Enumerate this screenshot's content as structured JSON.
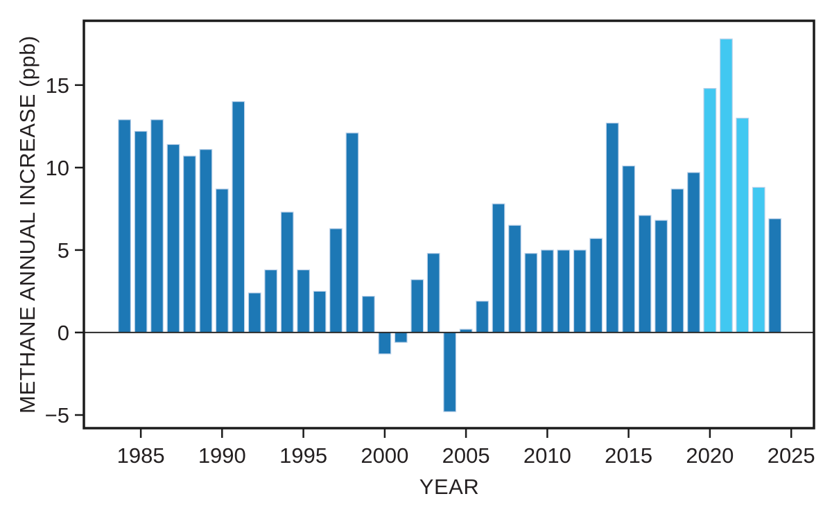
{
  "chart_data": {
    "type": "bar",
    "title": "",
    "xlabel": "YEAR",
    "ylabel": "METHANE ANNUAL INCREASE (ppb)",
    "categories": [
      1984,
      1985,
      1986,
      1987,
      1988,
      1989,
      1990,
      1991,
      1992,
      1993,
      1994,
      1995,
      1996,
      1997,
      1998,
      1999,
      2000,
      2001,
      2002,
      2003,
      2004,
      2005,
      2006,
      2007,
      2008,
      2009,
      2010,
      2011,
      2012,
      2013,
      2014,
      2015,
      2016,
      2017,
      2018,
      2019,
      2020,
      2021,
      2022,
      2023,
      2024
    ],
    "values": [
      12.9,
      12.2,
      12.9,
      11.4,
      10.7,
      11.1,
      8.7,
      14.0,
      2.4,
      3.8,
      7.3,
      3.8,
      2.5,
      6.3,
      12.1,
      2.2,
      -1.3,
      -0.6,
      3.2,
      4.8,
      -4.8,
      0.2,
      1.9,
      7.8,
      6.5,
      4.8,
      5.0,
      5.0,
      5.0,
      5.7,
      12.7,
      10.1,
      7.1,
      6.8,
      8.7,
      9.7,
      14.8,
      17.8,
      13.0,
      8.8,
      6.9
    ],
    "highlight_years": [
      2020,
      2021,
      2022,
      2023
    ],
    "bar_width_years": 0.75,
    "xticks": [
      1985,
      1990,
      1995,
      2000,
      2005,
      2010,
      2015,
      2020,
      2025
    ],
    "yticks": [
      15,
      10,
      5,
      0,
      -5
    ],
    "xlim": [
      1981.5,
      2026.4
    ],
    "ylim": [
      -5.8,
      18.9
    ],
    "grid": false,
    "legend": null,
    "zero_line": true,
    "colors": {
      "bar": "#1D78B5",
      "bar_highlight": "#41C8F1",
      "bar_edge": "#BDD2EA",
      "axis": "#1B1B1B",
      "text": "#231F20"
    }
  }
}
